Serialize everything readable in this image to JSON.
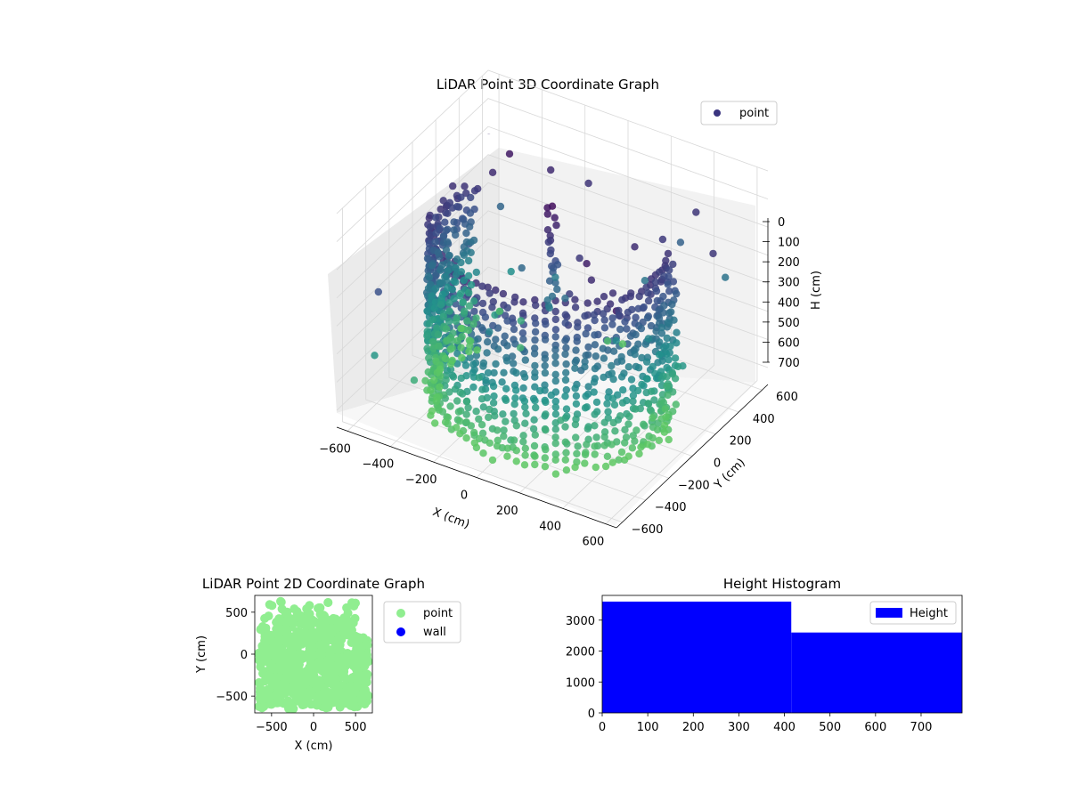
{
  "chart_data": [
    {
      "type": "scatter",
      "projection": "3d",
      "title": "LiDAR Point 3D Coordinate Graph",
      "xlabel": "X (cm)",
      "ylabel": "Y (cm)",
      "zlabel": "H (cm)",
      "xlim": [
        -650,
        650
      ],
      "ylim": [
        -650,
        650
      ],
      "zlim": [
        0,
        760
      ],
      "z_inverted": true,
      "xticks": [
        "−600",
        "−400",
        "−200",
        "0",
        "200",
        "400",
        "600"
      ],
      "yticks": [
        "−600",
        "−400",
        "−200",
        "0",
        "200",
        "400",
        "600"
      ],
      "zticks": [
        "0",
        "100",
        "200",
        "300",
        "400",
        "500",
        "600",
        "700"
      ],
      "grid": true,
      "legend": {
        "placement": "upper-right",
        "entries": [
          "point"
        ]
      },
      "colormap": "viridis (dark purple near top → teal near bottom)",
      "series": [
        {
          "name": "point",
          "description": "curved wall of points forming a partial cylinder, radius ≈ 500 cm, heights ≈ 150–760 cm, with a vertical column near the centre and sparse outliers",
          "wall_radius": 500,
          "wall_angle_range_deg": [
            -200,
            20
          ],
          "wall_height_range": [
            150,
            760
          ],
          "samples": [
            [
              -500,
              0,
              200
            ],
            [
              -480,
              -150,
              300
            ],
            [
              -400,
              -300,
              420
            ],
            [
              -250,
              -430,
              520
            ],
            [
              0,
              -500,
              600
            ],
            [
              250,
              -430,
              650
            ],
            [
              400,
              -300,
              700
            ],
            [
              480,
              -150,
              740
            ],
            [
              500,
              0,
              320
            ],
            [
              0,
              0,
              120
            ],
            [
              0,
              0,
              300
            ],
            [
              -200,
              250,
              250
            ],
            [
              300,
              200,
              180
            ]
          ]
        }
      ],
      "legend_color": "#3a347f"
    },
    {
      "type": "scatter",
      "title": "LiDAR Point 2D Coordinate Graph",
      "xlabel": "X (cm)",
      "ylabel": "Y (cm)",
      "xlim": [
        -700,
        700
      ],
      "ylim": [
        -700,
        700
      ],
      "xticks": [
        "−500",
        "0",
        "500"
      ],
      "yticks": [
        "−500",
        "0",
        "500"
      ],
      "legend": {
        "placement": "outside-right",
        "entries": [
          "point",
          "wall"
        ]
      },
      "series": [
        {
          "name": "point",
          "color": "#90ee90",
          "description": "dense filled blob of points covering roughly x −650…650, y −650…650"
        },
        {
          "name": "wall",
          "color": "#0000ff",
          "values": []
        }
      ]
    },
    {
      "type": "bar",
      "subtype": "histogram",
      "title": "Height Histogram",
      "xlim": [
        0,
        790
      ],
      "ylim": [
        0,
        3800
      ],
      "xticks": [
        "0",
        "100",
        "200",
        "300",
        "400",
        "500",
        "600",
        "700"
      ],
      "yticks": [
        "0",
        "1000",
        "2000",
        "3000"
      ],
      "bins": [
        {
          "x_start": 0,
          "x_end": 415,
          "count": 3600
        },
        {
          "x_start": 415,
          "x_end": 790,
          "count": 2600
        }
      ],
      "series": [
        {
          "name": "Height",
          "color": "#0000ff"
        }
      ],
      "legend": {
        "placement": "upper-right",
        "entries": [
          "Height"
        ]
      }
    }
  ]
}
